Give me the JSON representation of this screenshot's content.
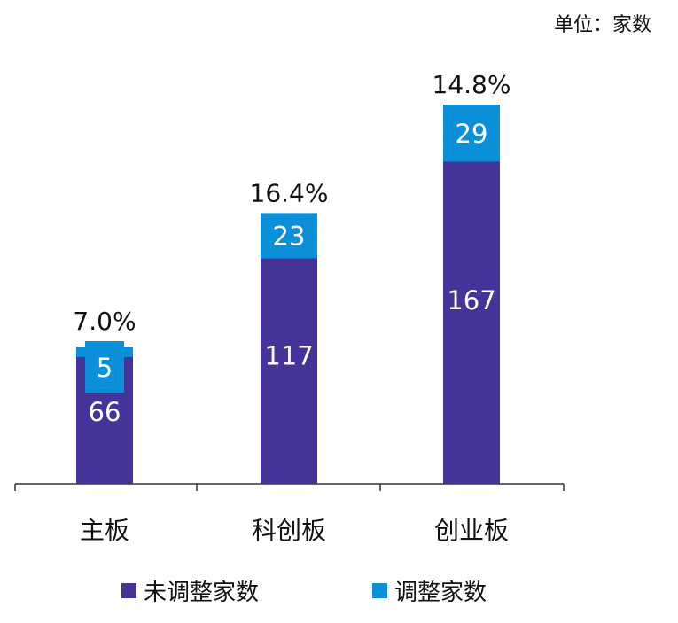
{
  "unit_label": "单位：家数",
  "chart_data": {
    "type": "bar",
    "stacked": true,
    "categories": [
      "主板",
      "科创板",
      "创业板"
    ],
    "series": [
      {
        "name": "未调整家数",
        "values": [
          66,
          117,
          167
        ],
        "color": "#443399"
      },
      {
        "name": "调整家数",
        "values": [
          5,
          23,
          29
        ],
        "color": "#0a8fd8"
      }
    ],
    "percent_labels": [
      "7.0%",
      "16.4%",
      "14.8%"
    ],
    "legend_position": "bottom",
    "grid": false
  }
}
